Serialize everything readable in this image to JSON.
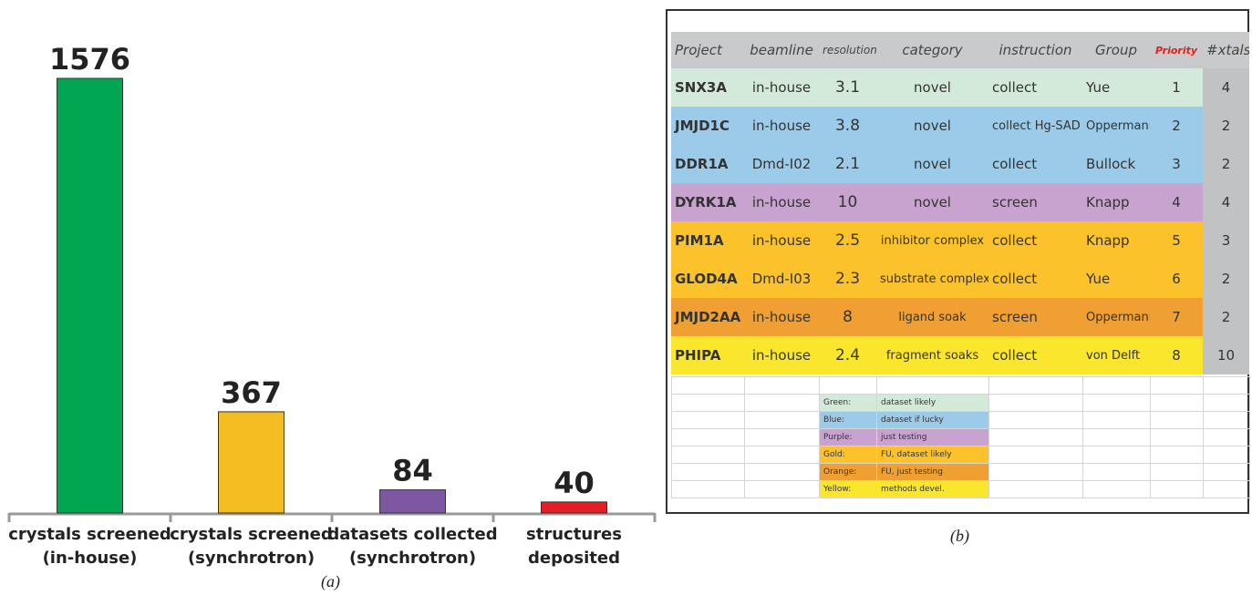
{
  "chart_data": {
    "type": "bar",
    "categories": [
      "crystals screened\n(in-house)",
      "crystals screened\n(synchrotron)",
      "datasets collected\n(synchrotron)",
      "structures\ndeposited"
    ],
    "values": [
      1576,
      367,
      84,
      40
    ],
    "colors": [
      "#00a651",
      "#f4bd22",
      "#7e57a3",
      "#e51e25"
    ],
    "caption": "(a)"
  },
  "table": {
    "caption": "(b)",
    "header": [
      "Project",
      "beamline",
      "resolution",
      "category",
      "instruction",
      "Group",
      "Priority",
      "#xtals"
    ],
    "rows": [
      [
        "SNX3A",
        "in-house",
        "3.1",
        "novel",
        "collect",
        "Yue",
        "1",
        "4"
      ],
      [
        "JMJD1C",
        "in-house",
        "3.8",
        "novel",
        "collect Hg-SAD",
        "Oppermann",
        "2",
        "2"
      ],
      [
        "DDR1A",
        "Dmd-I02",
        "2.1",
        "novel",
        "collect",
        "Bullock",
        "3",
        "2"
      ],
      [
        "DYRK1A",
        "in-house",
        "10",
        "novel",
        "screen",
        "Knapp",
        "4",
        "4"
      ],
      [
        "PIM1A",
        "in-house",
        "2.5",
        "inhibitor complex",
        "collect",
        "Knapp",
        "5",
        "3"
      ],
      [
        "GLOD4A",
        "Dmd-I03",
        "2.3",
        "substrate complex",
        "collect",
        "Yue",
        "6",
        "2"
      ],
      [
        "JMJD2AA",
        "in-house",
        "8",
        "ligand soak",
        "screen",
        "Oppermann",
        "7",
        "2"
      ],
      [
        "PHIPA",
        "in-house",
        "2.4",
        "fragment soaks",
        "collect",
        "von Delft",
        "8",
        "10"
      ]
    ],
    "row_colors": [
      "#d3e9d9",
      "#9ccbea",
      "#9ccbea",
      "#c9a3d0",
      "#fcc22c",
      "#fcc22c",
      "#f0a032",
      "#fbe62e"
    ],
    "legend": [
      [
        "Green:",
        "dataset likely"
      ],
      [
        "Blue:",
        "dataset if lucky"
      ],
      [
        "Purple:",
        "just testing"
      ],
      [
        "Gold:",
        "FU, dataset likely"
      ],
      [
        "Orange:",
        "FU, just testing"
      ],
      [
        "Yellow:",
        "methods devel."
      ]
    ],
    "legend_colors": [
      "#d3e9d9",
      "#9ccbea",
      "#c9a3d0",
      "#fcc22c",
      "#f0a032",
      "#fbe62e"
    ]
  }
}
